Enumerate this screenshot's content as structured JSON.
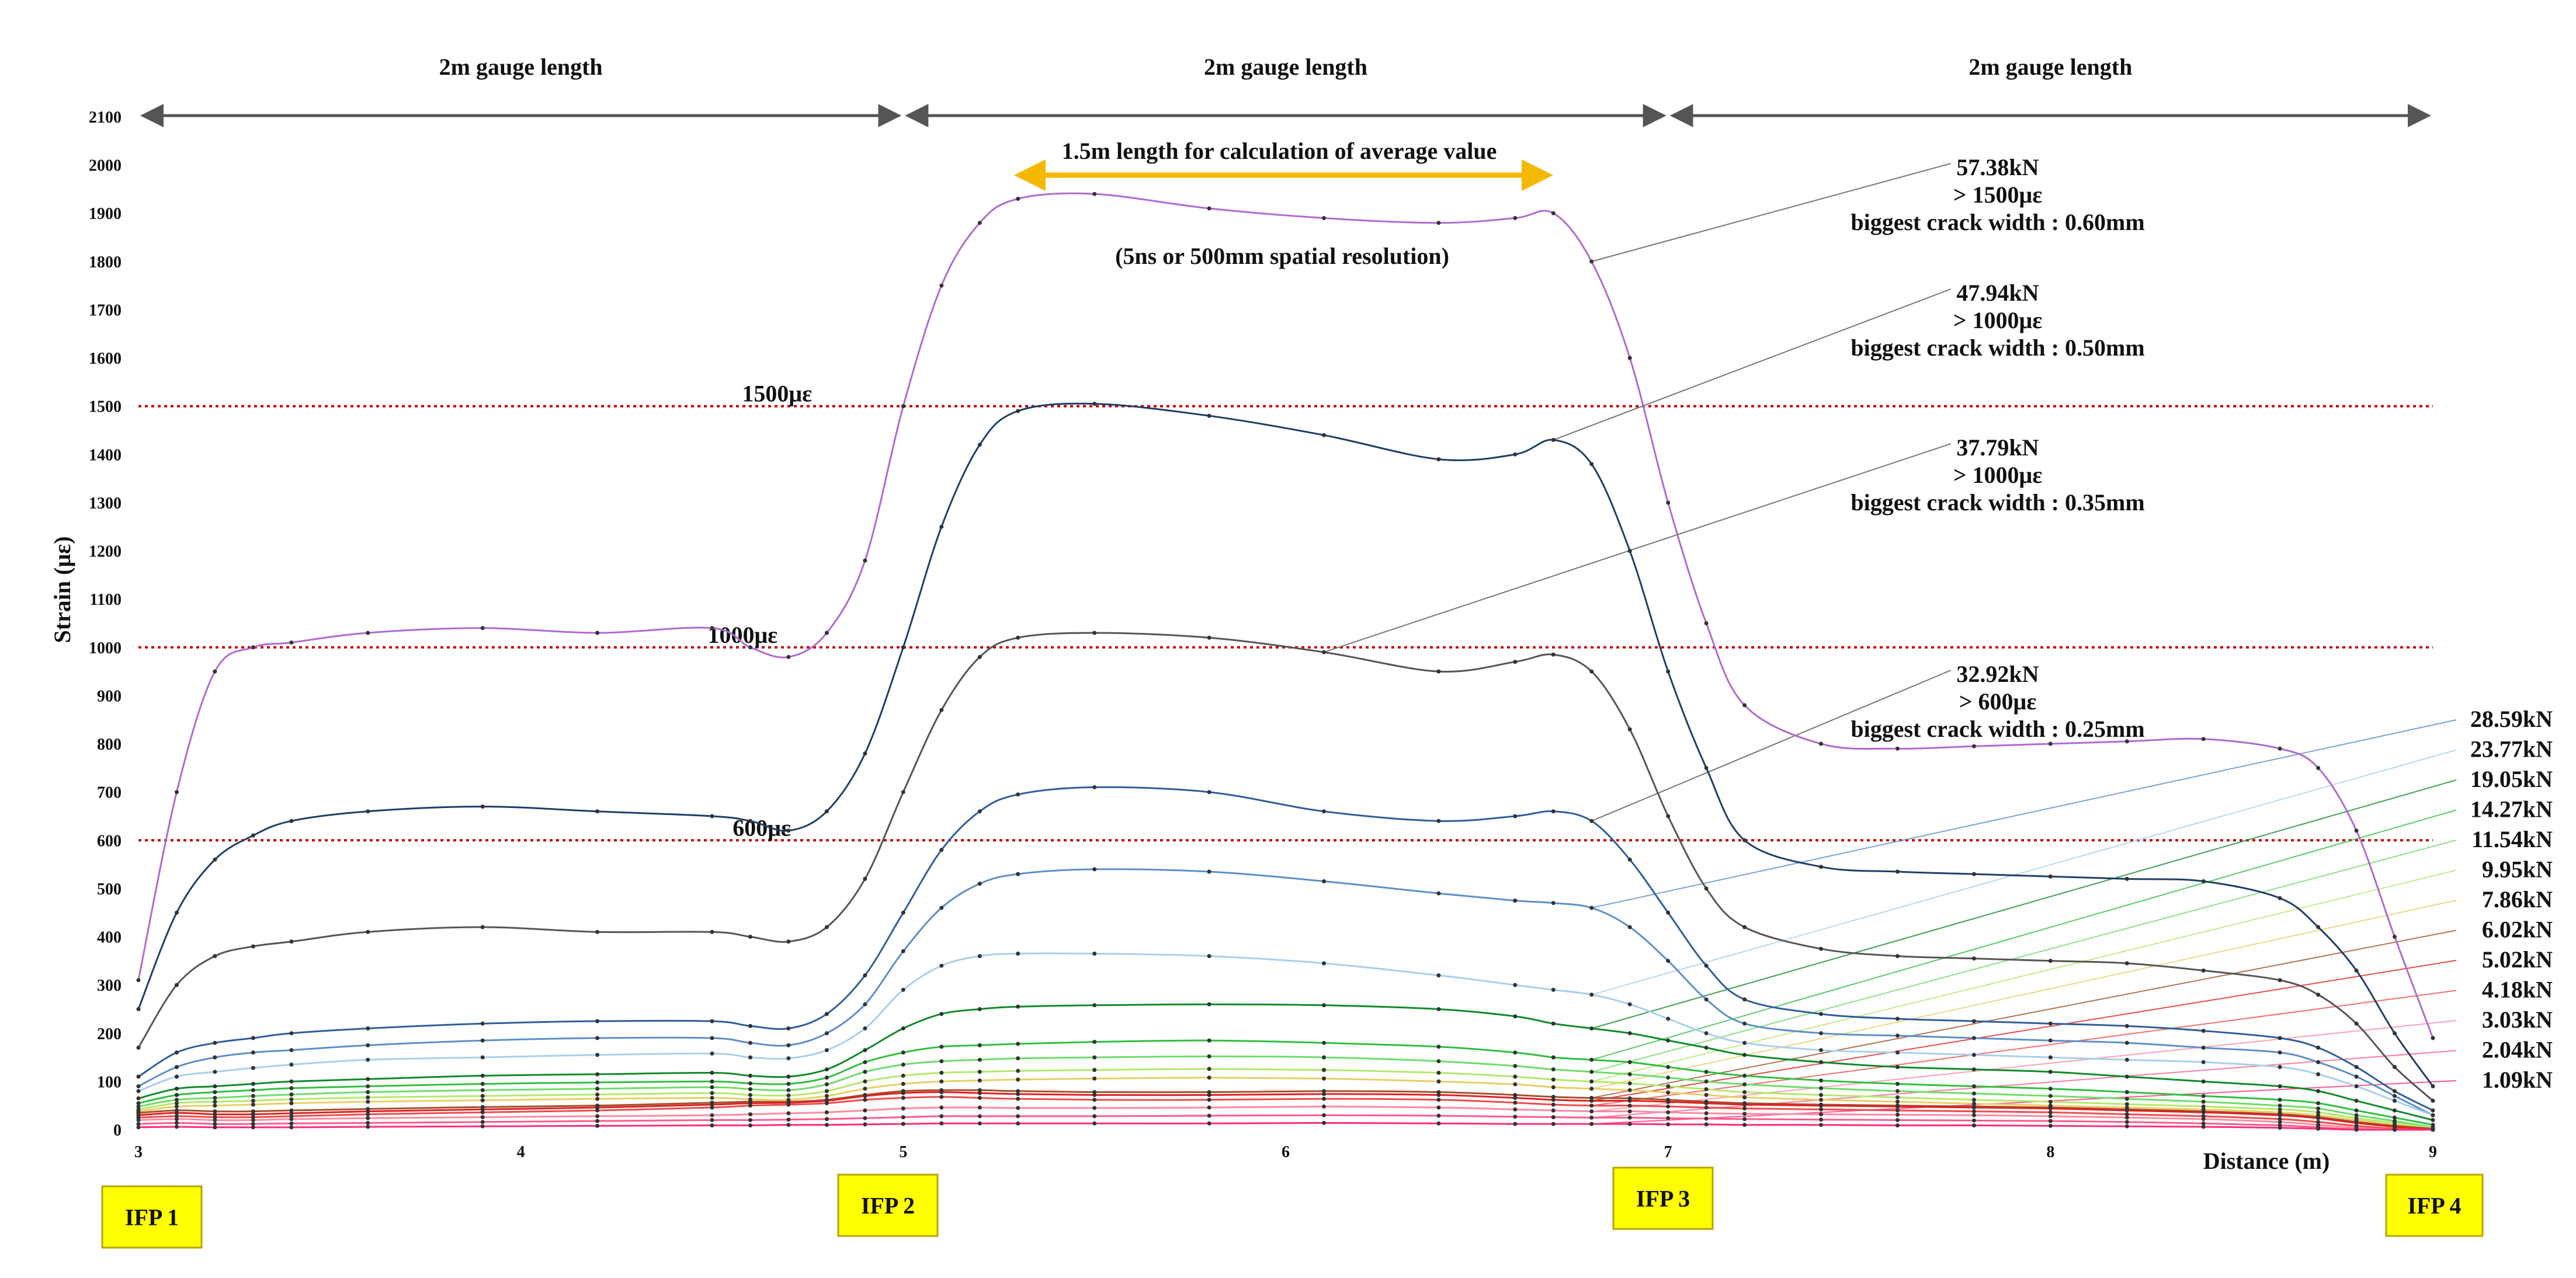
{
  "chart_data": {
    "type": "line",
    "xlabel": "Distance (m)",
    "ylabel": "Strain (με)",
    "xlim": [
      3,
      9
    ],
    "ylim": [
      0,
      2100
    ],
    "x_ticks": [
      3,
      4,
      5,
      6,
      7,
      8,
      9
    ],
    "y_ticks": [
      0,
      100,
      200,
      300,
      400,
      500,
      600,
      700,
      800,
      900,
      1000,
      1100,
      1200,
      1300,
      1400,
      1500,
      1600,
      1700,
      1800,
      1900,
      2000,
      2100
    ],
    "grid": false,
    "legend": "none",
    "x": [
      3.0,
      3.1,
      3.2,
      3.3,
      3.4,
      3.6,
      3.9,
      4.2,
      4.5,
      4.6,
      4.7,
      4.8,
      4.9,
      5.0,
      5.1,
      5.2,
      5.3,
      5.5,
      5.8,
      6.1,
      6.4,
      6.6,
      6.7,
      6.8,
      6.9,
      7.0,
      7.1,
      7.2,
      7.4,
      7.6,
      7.8,
      8.0,
      8.2,
      8.4,
      8.6,
      8.7,
      8.8,
      8.9,
      9.0
    ],
    "series": [
      {
        "name": "57.38kN",
        "color": "#b06ad0",
        "values": [
          310,
          700,
          950,
          1000,
          1010,
          1030,
          1040,
          1030,
          1040,
          1000,
          980,
          1030,
          1180,
          1500,
          1750,
          1880,
          1930,
          1940,
          1910,
          1890,
          1880,
          1890,
          1900,
          1800,
          1600,
          1300,
          1050,
          880,
          800,
          790,
          795,
          800,
          805,
          810,
          790,
          750,
          620,
          400,
          190
        ]
      },
      {
        "name": "47.94kN",
        "color": "#1f3e66",
        "values": [
          250,
          450,
          560,
          610,
          640,
          660,
          670,
          660,
          650,
          640,
          620,
          660,
          780,
          1000,
          1250,
          1420,
          1490,
          1505,
          1480,
          1440,
          1390,
          1400,
          1430,
          1380,
          1200,
          950,
          750,
          600,
          545,
          535,
          530,
          525,
          520,
          515,
          480,
          420,
          330,
          200,
          90
        ]
      },
      {
        "name": "37.79kN",
        "color": "#555555",
        "values": [
          170,
          300,
          360,
          380,
          390,
          410,
          420,
          410,
          410,
          400,
          390,
          420,
          520,
          700,
          870,
          980,
          1020,
          1030,
          1020,
          990,
          950,
          970,
          985,
          950,
          830,
          650,
          500,
          420,
          375,
          360,
          355,
          350,
          345,
          330,
          310,
          280,
          220,
          130,
          60
        ]
      },
      {
        "name": "32.92kN",
        "color": "#2e5e9a",
        "values": [
          110,
          160,
          180,
          190,
          200,
          210,
          220,
          225,
          225,
          215,
          210,
          240,
          320,
          450,
          580,
          660,
          695,
          710,
          700,
          660,
          640,
          650,
          660,
          640,
          560,
          450,
          340,
          270,
          240,
          230,
          225,
          220,
          215,
          205,
          190,
          170,
          130,
          80,
          40
        ]
      },
      {
        "name": "28.59kN",
        "color": "#5b8fc8",
        "values": [
          90,
          130,
          150,
          160,
          165,
          175,
          185,
          190,
          190,
          180,
          175,
          200,
          260,
          370,
          460,
          510,
          530,
          540,
          535,
          515,
          490,
          475,
          470,
          460,
          420,
          350,
          270,
          220,
          200,
          195,
          190,
          185,
          180,
          170,
          160,
          140,
          110,
          70,
          30
        ]
      },
      {
        "name": "23.77kN",
        "color": "#a9cfea",
        "values": [
          80,
          110,
          120,
          128,
          135,
          145,
          150,
          155,
          158,
          150,
          148,
          165,
          210,
          290,
          340,
          360,
          365,
          365,
          360,
          345,
          320,
          300,
          290,
          280,
          260,
          230,
          200,
          180,
          165,
          160,
          155,
          150,
          145,
          140,
          130,
          115,
          90,
          60,
          30
        ]
      },
      {
        "name": "19.05kN",
        "color": "#0e8a2a",
        "values": [
          65,
          85,
          90,
          95,
          100,
          105,
          112,
          115,
          118,
          112,
          110,
          125,
          165,
          210,
          240,
          250,
          255,
          258,
          260,
          258,
          250,
          235,
          220,
          210,
          200,
          185,
          170,
          155,
          140,
          130,
          125,
          120,
          110,
          100,
          90,
          80,
          60,
          40,
          20
        ]
      },
      {
        "name": "14.27kN",
        "color": "#2fbf3f",
        "values": [
          55,
          72,
          78,
          82,
          86,
          90,
          95,
          98,
          100,
          96,
          95,
          108,
          140,
          160,
          172,
          175,
          178,
          182,
          185,
          180,
          172,
          160,
          150,
          145,
          140,
          130,
          120,
          112,
          102,
          95,
          90,
          85,
          78,
          70,
          62,
          55,
          40,
          25,
          10
        ]
      },
      {
        "name": "11.54kN",
        "color": "#6fdc6a",
        "values": [
          48,
          62,
          66,
          70,
          73,
          78,
          82,
          85,
          88,
          84,
          82,
          94,
          120,
          135,
          142,
          145,
          148,
          150,
          152,
          150,
          142,
          132,
          125,
          120,
          115,
          108,
          100,
          94,
          86,
          80,
          75,
          70,
          64,
          58,
          50,
          44,
          30,
          18,
          5
        ]
      },
      {
        "name": "9.95kN",
        "color": "#b5e86a",
        "values": [
          42,
          55,
          58,
          60,
          63,
          67,
          70,
          73,
          76,
          72,
          71,
          80,
          100,
          112,
          118,
          120,
          122,
          124,
          126,
          124,
          118,
          110,
          104,
          100,
          96,
          90,
          84,
          78,
          72,
          67,
          62,
          58,
          53,
          48,
          42,
          36,
          24,
          14,
          4
        ]
      },
      {
        "name": "7.86kN",
        "color": "#e8cf66",
        "values": [
          38,
          48,
          50,
          52,
          55,
          58,
          61,
          64,
          66,
          63,
          62,
          70,
          85,
          95,
          100,
          102,
          104,
          106,
          108,
          106,
          100,
          94,
          88,
          85,
          82,
          77,
          72,
          67,
          62,
          58,
          54,
          50,
          46,
          42,
          36,
          30,
          20,
          10,
          2
        ]
      },
      {
        "name": "6.02kN",
        "color": "#a0522d",
        "values": [
          35,
          40,
          38,
          38,
          40,
          43,
          47,
          50,
          56,
          58,
          58,
          62,
          72,
          80,
          82,
          82,
          80,
          78,
          78,
          80,
          78,
          72,
          68,
          66,
          65,
          62,
          58,
          55,
          52,
          50,
          48,
          46,
          42,
          38,
          32,
          26,
          16,
          8,
          2
        ]
      },
      {
        "name": "5.02kN",
        "color": "#e02020",
        "values": [
          30,
          35,
          32,
          32,
          34,
          38,
          42,
          46,
          52,
          55,
          56,
          60,
          70,
          76,
          78,
          76,
          74,
          72,
          72,
          74,
          72,
          66,
          62,
          60,
          60,
          58,
          55,
          52,
          50,
          48,
          46,
          44,
          40,
          36,
          30,
          24,
          14,
          6,
          0
        ]
      },
      {
        "name": "4.18kN",
        "color": "#ef4b4b",
        "values": [
          25,
          28,
          26,
          26,
          28,
          32,
          36,
          40,
          46,
          50,
          52,
          55,
          62,
          66,
          68,
          66,
          64,
          62,
          62,
          64,
          62,
          56,
          52,
          50,
          50,
          48,
          46,
          44,
          42,
          40,
          38,
          36,
          32,
          28,
          22,
          16,
          8,
          2,
          0
        ]
      },
      {
        "name": "3.03kN",
        "color": "#ff8aa0",
        "values": [
          20,
          22,
          20,
          20,
          22,
          24,
          26,
          28,
          30,
          32,
          34,
          36,
          40,
          44,
          46,
          46,
          45,
          45,
          46,
          48,
          46,
          42,
          40,
          38,
          38,
          36,
          34,
          33,
          32,
          31,
          30,
          28,
          25,
          22,
          16,
          10,
          4,
          0,
          0
        ]
      },
      {
        "name": "2.04kN",
        "color": "#ff5c8a",
        "values": [
          12,
          14,
          12,
          12,
          13,
          14,
          16,
          18,
          20,
          20,
          21,
          22,
          24,
          26,
          28,
          28,
          28,
          28,
          29,
          30,
          29,
          27,
          26,
          25,
          25,
          24,
          23,
          22,
          21,
          20,
          19,
          18,
          16,
          13,
          9,
          5,
          1,
          0,
          0
        ]
      },
      {
        "name": "1.09kN",
        "color": "#ff2d7a",
        "values": [
          5,
          6,
          5,
          5,
          5,
          6,
          7,
          8,
          9,
          9,
          10,
          10,
          11,
          12,
          13,
          13,
          13,
          13,
          13,
          14,
          13,
          12,
          12,
          12,
          12,
          11,
          11,
          10,
          10,
          9,
          9,
          8,
          7,
          6,
          4,
          2,
          0,
          0,
          0
        ]
      }
    ],
    "threshold_lines": [
      {
        "value": 1500,
        "label": "1500με"
      },
      {
        "value": 1000,
        "label": "1000με"
      },
      {
        "value": 600,
        "label": "600με"
      }
    ],
    "gauge_lengths": [
      {
        "from": 3,
        "to": 5,
        "label": "2m gauge length"
      },
      {
        "from": 5,
        "to": 7,
        "label": "2m gauge length"
      },
      {
        "from": 7,
        "to": 9,
        "label": "2m gauge length"
      }
    ],
    "average_range": {
      "label": "1.5m  length for calculation of average value",
      "note": "(5ns or 500mm spatial resolution)"
    },
    "callouts": [
      {
        "series": "57.38kN",
        "lines": [
          "57.38kN",
          "> 1500με",
          "biggest crack width : 0.60mm"
        ]
      },
      {
        "series": "47.94kN",
        "lines": [
          "47.94kN",
          "> 1000με",
          "biggest crack width : 0.50mm"
        ]
      },
      {
        "series": "37.79kN",
        "lines": [
          "37.79kN",
          "> 1000με",
          "biggest crack width : 0.35mm"
        ]
      },
      {
        "series": "32.92kN",
        "lines": [
          "32.92kN",
          "> 600με",
          "biggest crack width : 0.25mm"
        ]
      }
    ],
    "ifp_markers": [
      {
        "label": "IFP 1",
        "x": 3
      },
      {
        "label": "IFP 2",
        "x": 5
      },
      {
        "label": "IFP 3",
        "x": 7
      },
      {
        "label": "IFP 4",
        "x": 9
      }
    ]
  }
}
